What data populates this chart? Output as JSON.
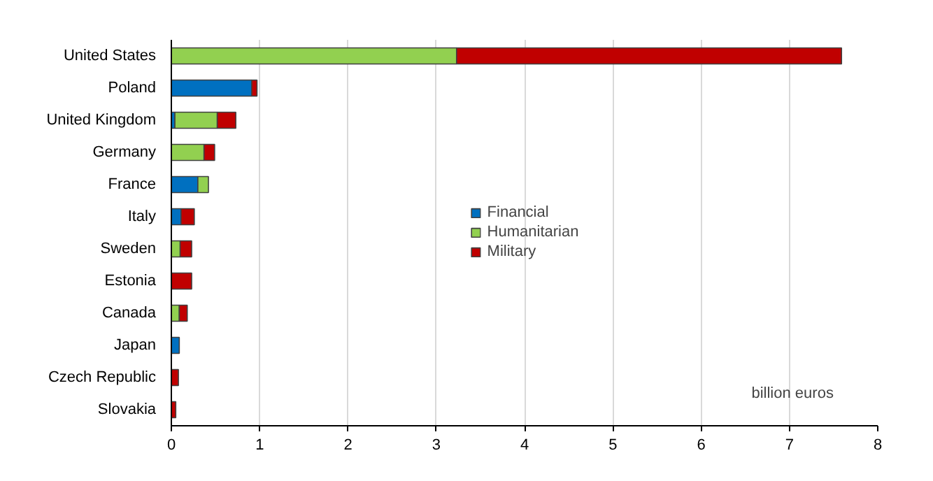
{
  "chart_data": {
    "type": "bar",
    "orientation": "horizontal",
    "stacked": true,
    "categories": [
      "United States",
      "Poland",
      "United Kingdom",
      "Germany",
      "France",
      "Italy",
      "Sweden",
      "Estonia",
      "Canada",
      "Japan",
      "Czech Republic",
      "Slovakia"
    ],
    "series": [
      {
        "name": "Financial",
        "color": "#0070c0",
        "values": [
          0,
          0.91,
          0.04,
          0,
          0.3,
          0.11,
          0,
          0,
          0,
          0.09,
          0,
          0
        ]
      },
      {
        "name": "Humanitarian",
        "color": "#92d050",
        "values": [
          3.23,
          0,
          0.48,
          0.37,
          0.12,
          0,
          0.1,
          0,
          0.09,
          0,
          0,
          0
        ]
      },
      {
        "name": "Military",
        "color": "#c00000",
        "values": [
          4.36,
          0.06,
          0.21,
          0.12,
          0,
          0.15,
          0.13,
          0.23,
          0.09,
          0,
          0.08,
          0.05
        ]
      }
    ],
    "xlim": [
      0,
      8
    ],
    "xticks": [
      0,
      1,
      2,
      3,
      4,
      5,
      6,
      7,
      8
    ],
    "grid": "x",
    "legend": "center",
    "annotations": [
      "billion euros"
    ]
  }
}
